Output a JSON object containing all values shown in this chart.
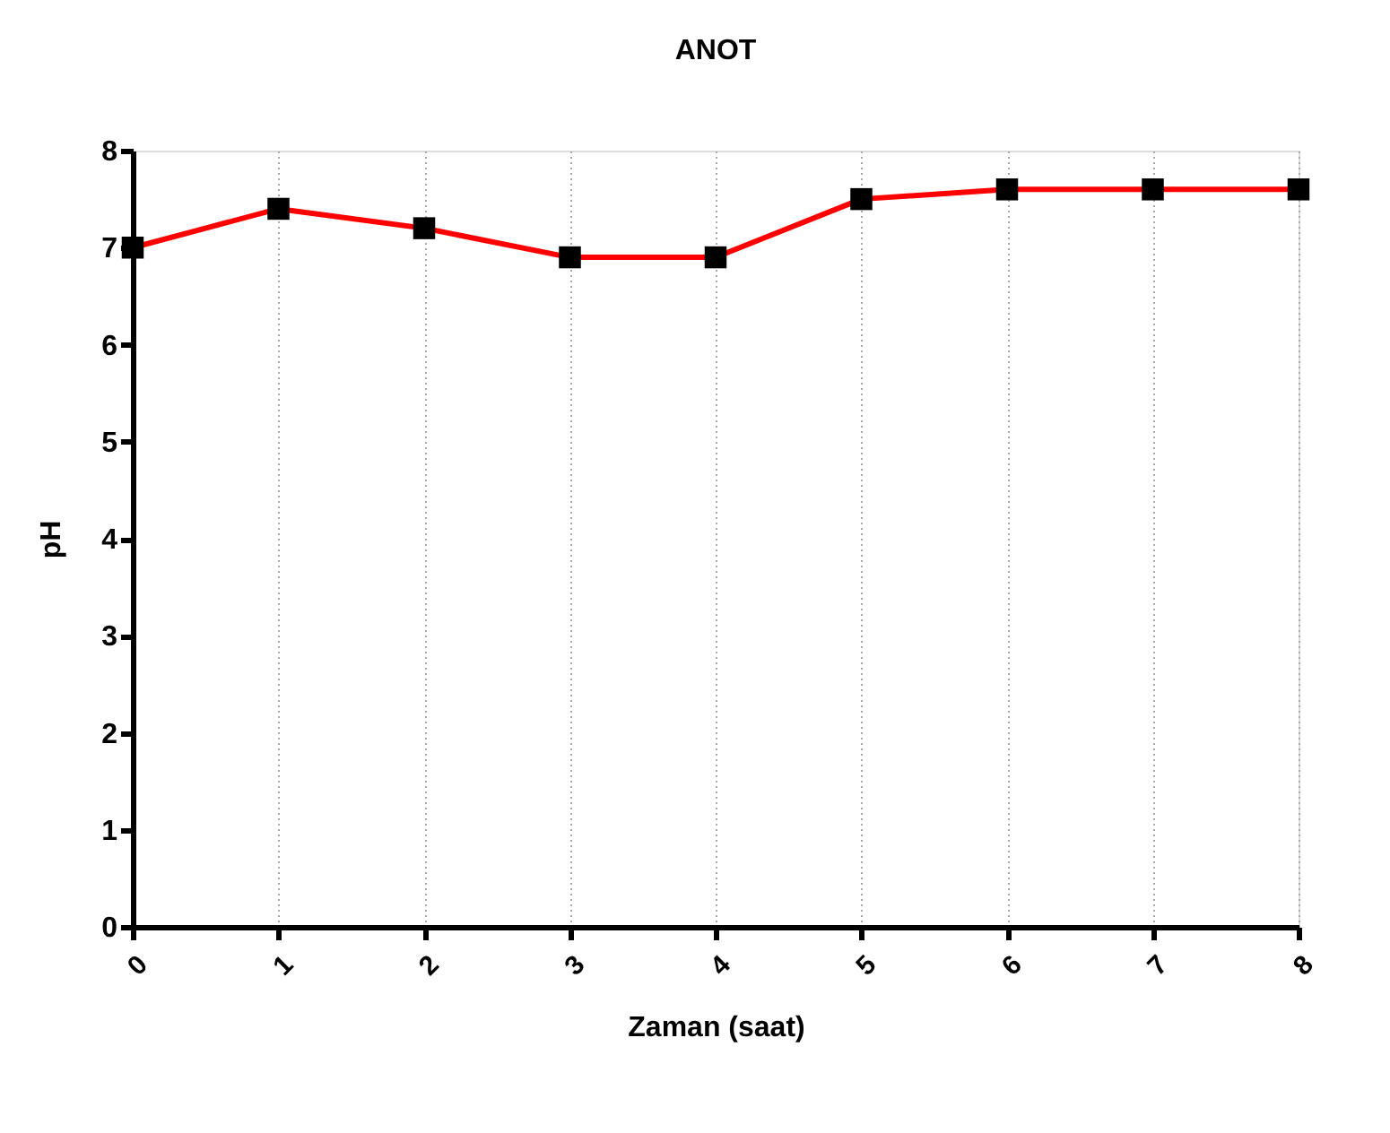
{
  "chart_data": {
    "type": "line",
    "title": "ANOT",
    "xlabel": "Zaman (saat)",
    "ylabel": "pH",
    "x": [
      0,
      1,
      2,
      3,
      4,
      5,
      6,
      7,
      8
    ],
    "series": [
      {
        "color": "#ff0000",
        "values": [
          7.0,
          7.4,
          7.2,
          6.9,
          6.9,
          7.5,
          7.6,
          7.6,
          7.6
        ]
      }
    ],
    "xlim": [
      0,
      8
    ],
    "xticks": [
      0,
      1,
      2,
      3,
      4,
      5,
      6,
      7,
      8
    ],
    "ylim": [
      0,
      8
    ],
    "yticks": [
      0,
      1,
      2,
      3,
      4,
      5,
      6,
      7,
      8
    ],
    "grid": "x",
    "marker": "square",
    "line_style": "solid"
  }
}
